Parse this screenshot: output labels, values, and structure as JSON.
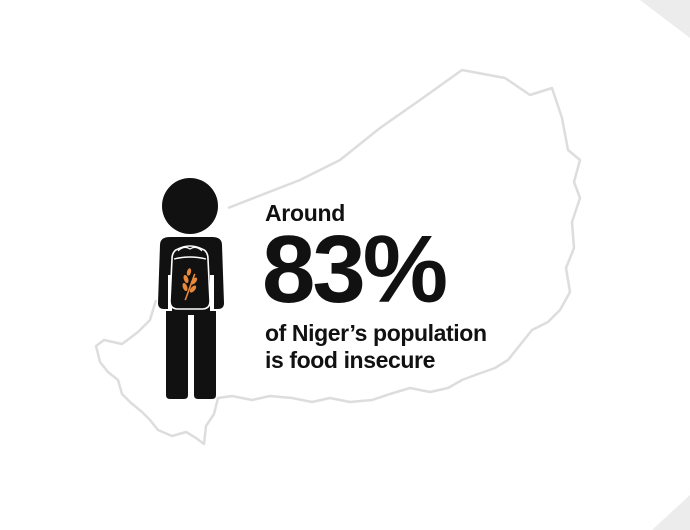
{
  "infographic": {
    "lead_text": "Around",
    "statistic": "83%",
    "caption_line1": "of Niger’s population",
    "caption_line2": "is food insecure"
  },
  "icons": {
    "map": "niger-map-outline",
    "figure": "person-with-grain-sack-icon",
    "grain": "wheat-icon"
  },
  "colors": {
    "text": "#111111",
    "map_stroke": "#dddddd",
    "figure": "#111111",
    "grain": "#e8893a",
    "corner": "#ececec"
  }
}
